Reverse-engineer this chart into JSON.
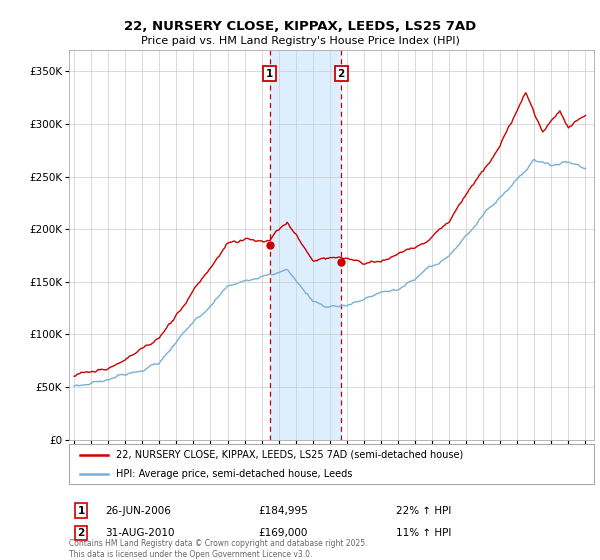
{
  "title": "22, NURSERY CLOSE, KIPPAX, LEEDS, LS25 7AD",
  "subtitle": "Price paid vs. HM Land Registry's House Price Index (HPI)",
  "ylabel_ticks": [
    "£0",
    "£50K",
    "£100K",
    "£150K",
    "£200K",
    "£250K",
    "£300K",
    "£350K"
  ],
  "ylim": [
    0,
    370000
  ],
  "yticks": [
    0,
    50000,
    100000,
    150000,
    200000,
    250000,
    300000,
    350000
  ],
  "legend_line1": "22, NURSERY CLOSE, KIPPAX, LEEDS, LS25 7AD (semi-detached house)",
  "legend_line2": "HPI: Average price, semi-detached house, Leeds",
  "sale1_date": "26-JUN-2006",
  "sale1_price": 184995,
  "sale1_label": "£184,995",
  "sale1_hpi": "22% ↑ HPI",
  "sale2_date": "31-AUG-2010",
  "sale2_price": 169000,
  "sale2_label": "£169,000",
  "sale2_hpi": "11% ↑ HPI",
  "footer": "Contains HM Land Registry data © Crown copyright and database right 2025.\nThis data is licensed under the Open Government Licence v3.0.",
  "red_color": "#cc0000",
  "blue_color": "#7bafd4",
  "bg_color": "#ffffff",
  "grid_color": "#cccccc",
  "shade_color": "#ddeeff",
  "vline_color": "#cc0000",
  "sale1_year": 2006.48,
  "sale2_year": 2010.67
}
